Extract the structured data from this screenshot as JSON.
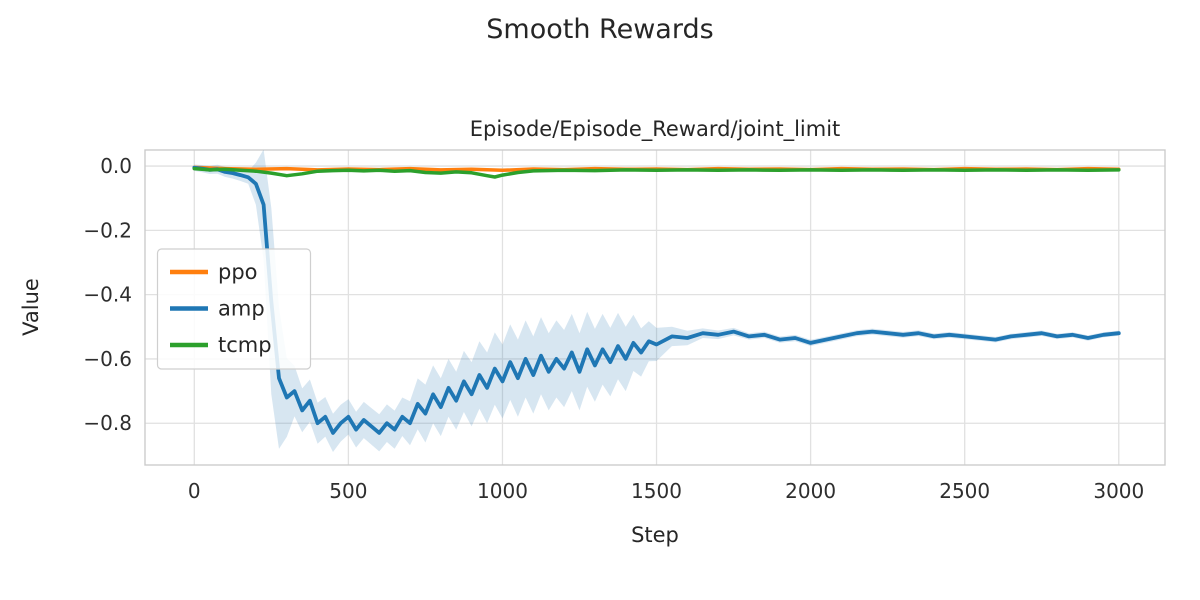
{
  "chart_data": {
    "type": "line",
    "title": "Smooth Rewards",
    "subtitle": "Episode/Episode_Reward/joint_limit",
    "xlabel": "Step",
    "ylabel": "Value",
    "xlim": [
      -160,
      3150
    ],
    "ylim": [
      -0.93,
      0.05
    ],
    "xticks": [
      0,
      500,
      1000,
      1500,
      2000,
      2500,
      3000
    ],
    "xtick_labels": [
      "0",
      "500",
      "1000",
      "1500",
      "2000",
      "2500",
      "3000"
    ],
    "yticks": [
      0.0,
      -0.2,
      -0.4,
      -0.6,
      -0.8
    ],
    "ytick_labels": [
      "0.0",
      "−0.2",
      "−0.4",
      "−0.6",
      "−0.8"
    ],
    "grid": true,
    "legend": {
      "position": "center-left-inside",
      "entries": [
        "ppo",
        "amp",
        "tcmp"
      ]
    },
    "style": {
      "grid_color": "#e1e1e1",
      "spine_color": "#cccccc",
      "text_color": "#262626",
      "background": "#ffffff",
      "band_opacity": 0.18
    },
    "series": [
      {
        "name": "ppo",
        "color": "#ff7f0e",
        "points": [
          [
            0,
            -0.004
          ],
          [
            100,
            -0.008
          ],
          [
            200,
            -0.01
          ],
          [
            300,
            -0.008
          ],
          [
            400,
            -0.012
          ],
          [
            500,
            -0.009
          ],
          [
            600,
            -0.011
          ],
          [
            700,
            -0.008
          ],
          [
            800,
            -0.012
          ],
          [
            900,
            -0.01
          ],
          [
            1000,
            -0.013
          ],
          [
            1100,
            -0.009
          ],
          [
            1200,
            -0.011
          ],
          [
            1300,
            -0.008
          ],
          [
            1400,
            -0.01
          ],
          [
            1500,
            -0.009
          ],
          [
            1600,
            -0.011
          ],
          [
            1700,
            -0.008
          ],
          [
            1800,
            -0.01
          ],
          [
            1900,
            -0.009
          ],
          [
            2000,
            -0.011
          ],
          [
            2100,
            -0.008
          ],
          [
            2200,
            -0.01
          ],
          [
            2300,
            -0.009
          ],
          [
            2400,
            -0.011
          ],
          [
            2500,
            -0.008
          ],
          [
            2600,
            -0.01
          ],
          [
            2700,
            -0.009
          ],
          [
            2800,
            -0.011
          ],
          [
            2900,
            -0.008
          ],
          [
            3000,
            -0.01
          ]
        ]
      },
      {
        "name": "amp",
        "color": "#1f77b4",
        "points": [
          [
            0,
            -0.005
          ],
          [
            25,
            -0.008
          ],
          [
            50,
            -0.012
          ],
          [
            75,
            -0.01
          ],
          [
            100,
            -0.018
          ],
          [
            125,
            -0.022
          ],
          [
            150,
            -0.028
          ],
          [
            175,
            -0.035
          ],
          [
            200,
            -0.055
          ],
          [
            225,
            -0.12
          ],
          [
            250,
            -0.42
          ],
          [
            275,
            -0.66
          ],
          [
            300,
            -0.72
          ],
          [
            325,
            -0.7
          ],
          [
            350,
            -0.76
          ],
          [
            375,
            -0.73
          ],
          [
            400,
            -0.8
          ],
          [
            425,
            -0.78
          ],
          [
            450,
            -0.83
          ],
          [
            475,
            -0.8
          ],
          [
            500,
            -0.78
          ],
          [
            525,
            -0.82
          ],
          [
            550,
            -0.79
          ],
          [
            575,
            -0.81
          ],
          [
            600,
            -0.83
          ],
          [
            625,
            -0.8
          ],
          [
            650,
            -0.82
          ],
          [
            675,
            -0.78
          ],
          [
            700,
            -0.8
          ],
          [
            725,
            -0.74
          ],
          [
            750,
            -0.77
          ],
          [
            775,
            -0.71
          ],
          [
            800,
            -0.75
          ],
          [
            825,
            -0.69
          ],
          [
            850,
            -0.73
          ],
          [
            875,
            -0.67
          ],
          [
            900,
            -0.71
          ],
          [
            925,
            -0.65
          ],
          [
            950,
            -0.69
          ],
          [
            975,
            -0.63
          ],
          [
            1000,
            -0.67
          ],
          [
            1025,
            -0.61
          ],
          [
            1050,
            -0.66
          ],
          [
            1075,
            -0.6
          ],
          [
            1100,
            -0.65
          ],
          [
            1125,
            -0.59
          ],
          [
            1150,
            -0.64
          ],
          [
            1175,
            -0.6
          ],
          [
            1200,
            -0.63
          ],
          [
            1225,
            -0.58
          ],
          [
            1250,
            -0.64
          ],
          [
            1275,
            -0.57
          ],
          [
            1300,
            -0.62
          ],
          [
            1325,
            -0.57
          ],
          [
            1350,
            -0.61
          ],
          [
            1375,
            -0.56
          ],
          [
            1400,
            -0.6
          ],
          [
            1425,
            -0.55
          ],
          [
            1450,
            -0.58
          ],
          [
            1475,
            -0.545
          ],
          [
            1500,
            -0.555
          ],
          [
            1550,
            -0.53
          ],
          [
            1600,
            -0.535
          ],
          [
            1650,
            -0.52
          ],
          [
            1700,
            -0.525
          ],
          [
            1750,
            -0.515
          ],
          [
            1800,
            -0.53
          ],
          [
            1850,
            -0.525
          ],
          [
            1900,
            -0.54
          ],
          [
            1950,
            -0.535
          ],
          [
            2000,
            -0.55
          ],
          [
            2050,
            -0.54
          ],
          [
            2100,
            -0.53
          ],
          [
            2150,
            -0.52
          ],
          [
            2200,
            -0.515
          ],
          [
            2250,
            -0.52
          ],
          [
            2300,
            -0.525
          ],
          [
            2350,
            -0.52
          ],
          [
            2400,
            -0.53
          ],
          [
            2450,
            -0.525
          ],
          [
            2500,
            -0.53
          ],
          [
            2550,
            -0.535
          ],
          [
            2600,
            -0.54
          ],
          [
            2650,
            -0.53
          ],
          [
            2700,
            -0.525
          ],
          [
            2750,
            -0.52
          ],
          [
            2800,
            -0.53
          ],
          [
            2850,
            -0.525
          ],
          [
            2900,
            -0.535
          ],
          [
            2950,
            -0.525
          ],
          [
            3000,
            -0.52
          ]
        ],
        "band_spread": [
          [
            0,
            0.01
          ],
          [
            180,
            0.02
          ],
          [
            215,
            0.1
          ],
          [
            240,
            0.28
          ],
          [
            260,
            0.3
          ],
          [
            290,
            0.14
          ],
          [
            330,
            0.07
          ],
          [
            500,
            0.055
          ],
          [
            680,
            0.06
          ],
          [
            750,
            0.09
          ],
          [
            850,
            0.09
          ],
          [
            950,
            0.11
          ],
          [
            1050,
            0.12
          ],
          [
            1250,
            0.12
          ],
          [
            1400,
            0.1
          ],
          [
            1480,
            0.06
          ],
          [
            1550,
            0.03
          ],
          [
            1650,
            0.015
          ],
          [
            1800,
            0.01
          ],
          [
            3000,
            0.008
          ]
        ]
      },
      {
        "name": "tcmp",
        "color": "#2ca02c",
        "points": [
          [
            0,
            -0.008
          ],
          [
            50,
            -0.012
          ],
          [
            100,
            -0.01
          ],
          [
            150,
            -0.013
          ],
          [
            200,
            -0.016
          ],
          [
            250,
            -0.022
          ],
          [
            300,
            -0.03
          ],
          [
            350,
            -0.024
          ],
          [
            400,
            -0.016
          ],
          [
            450,
            -0.014
          ],
          [
            500,
            -0.013
          ],
          [
            550,
            -0.015
          ],
          [
            600,
            -0.013
          ],
          [
            650,
            -0.016
          ],
          [
            700,
            -0.014
          ],
          [
            750,
            -0.02
          ],
          [
            800,
            -0.022
          ],
          [
            850,
            -0.018
          ],
          [
            900,
            -0.021
          ],
          [
            950,
            -0.03
          ],
          [
            975,
            -0.034
          ],
          [
            1000,
            -0.028
          ],
          [
            1050,
            -0.02
          ],
          [
            1100,
            -0.015
          ],
          [
            1200,
            -0.013
          ],
          [
            1300,
            -0.014
          ],
          [
            1400,
            -0.012
          ],
          [
            1500,
            -0.013
          ],
          [
            1600,
            -0.012
          ],
          [
            1700,
            -0.013
          ],
          [
            1800,
            -0.012
          ],
          [
            1900,
            -0.013
          ],
          [
            2000,
            -0.012
          ],
          [
            2100,
            -0.013
          ],
          [
            2200,
            -0.012
          ],
          [
            2300,
            -0.013
          ],
          [
            2400,
            -0.012
          ],
          [
            2500,
            -0.013
          ],
          [
            2600,
            -0.012
          ],
          [
            2700,
            -0.013
          ],
          [
            2800,
            -0.012
          ],
          [
            2900,
            -0.013
          ],
          [
            3000,
            -0.012
          ]
        ]
      }
    ]
  }
}
